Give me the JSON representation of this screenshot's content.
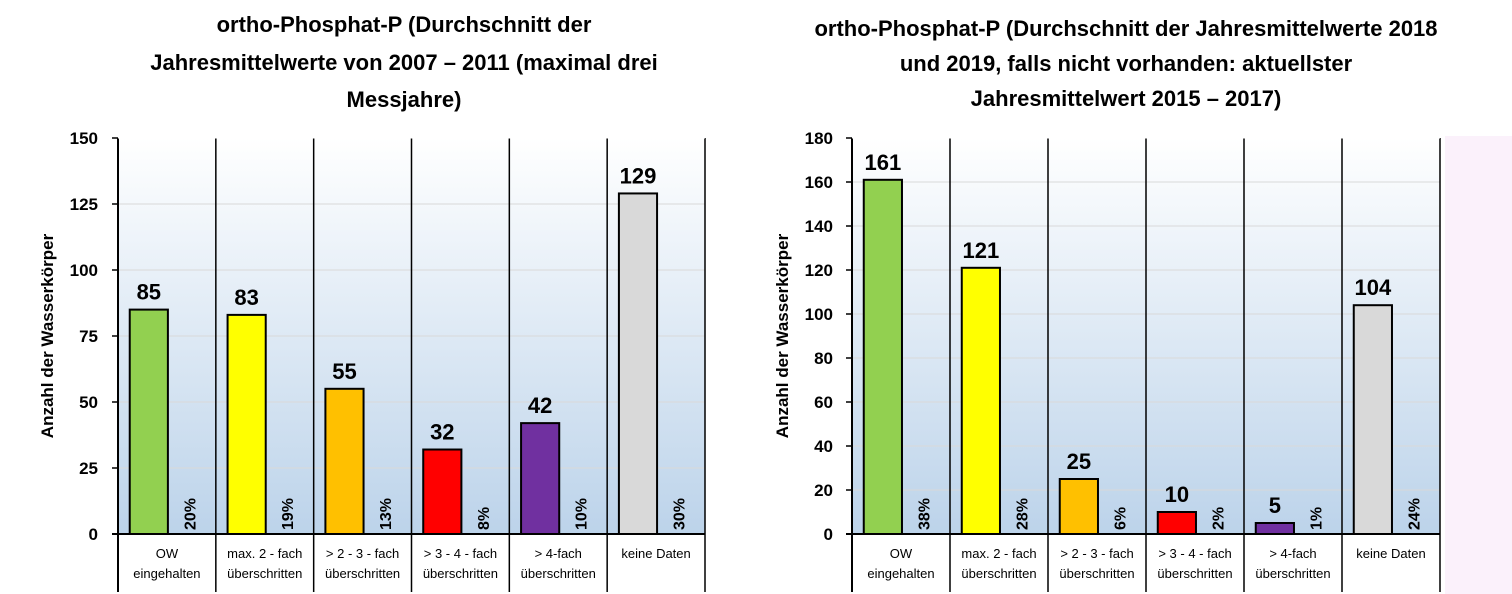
{
  "chart_data": [
    {
      "type": "bar",
      "title_lines": [
        "ortho-Phosphat-P (Durchschnitt der",
        "Jahresmittelwerte von 2007 – 2011 (maximal drei",
        "Messjahre)"
      ],
      "ylabel": "Anzahl der Wasserkörper",
      "ylim": [
        0,
        150
      ],
      "yticks": [
        0,
        25,
        50,
        75,
        100,
        125,
        150
      ],
      "categories": [
        [
          "OW",
          "eingehalten"
        ],
        [
          "max. 2 - fach",
          "überschritten"
        ],
        [
          "> 2 - 3 - fach",
          "überschritten"
        ],
        [
          "> 3 - 4 - fach",
          "überschritten"
        ],
        [
          "> 4-fach",
          "überschritten"
        ],
        [
          "keine Daten"
        ]
      ],
      "values": [
        85,
        83,
        55,
        32,
        42,
        129
      ],
      "percent_labels": [
        "20%",
        "19%",
        "13%",
        "8%",
        "10%",
        "30%"
      ],
      "colors": [
        "#92d050",
        "#ffff00",
        "#ffc000",
        "#ff0000",
        "#7030a0",
        "#d9d9d9"
      ],
      "grid": true
    },
    {
      "type": "bar",
      "title_lines": [
        "ortho-Phosphat-P (Durchschnitt der Jahresmittelwerte 2018",
        "und 2019, falls nicht vorhanden: aktuellster",
        "Jahresmittelwert 2015 – 2017)"
      ],
      "ylabel": "Anzahl der Wasserkörper",
      "ylim": [
        0,
        180
      ],
      "yticks": [
        0,
        20,
        40,
        60,
        80,
        100,
        120,
        140,
        160,
        180
      ],
      "categories": [
        [
          "OW",
          "eingehalten"
        ],
        [
          "max. 2 - fach",
          "überschritten"
        ],
        [
          "> 2 - 3 - fach",
          "überschritten"
        ],
        [
          "> 3 - 4 - fach",
          "überschritten"
        ],
        [
          "> 4-fach",
          "überschritten"
        ],
        [
          "keine Daten"
        ]
      ],
      "values": [
        161,
        121,
        25,
        10,
        5,
        104
      ],
      "percent_labels": [
        "38%",
        "28%",
        "6%",
        "2%",
        "1%",
        "24%"
      ],
      "colors": [
        "#92d050",
        "#ffff00",
        "#ffc000",
        "#ff0000",
        "#7030a0",
        "#d9d9d9"
      ],
      "grid": true
    }
  ]
}
